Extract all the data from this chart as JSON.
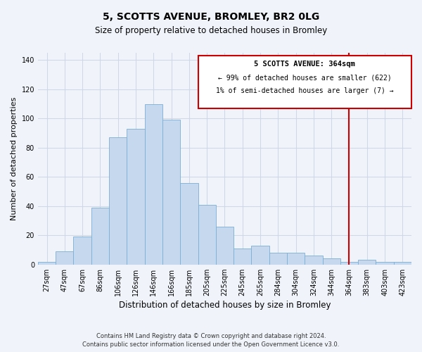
{
  "title": "5, SCOTTS AVENUE, BROMLEY, BR2 0LG",
  "subtitle": "Size of property relative to detached houses in Bromley",
  "xlabel": "Distribution of detached houses by size in Bromley",
  "ylabel": "Number of detached properties",
  "bar_color": "#c5d8ed",
  "bar_edge_color": "#7baed4",
  "categories": [
    "27sqm",
    "47sqm",
    "67sqm",
    "86sqm",
    "106sqm",
    "126sqm",
    "146sqm",
    "166sqm",
    "185sqm",
    "205sqm",
    "225sqm",
    "245sqm",
    "265sqm",
    "284sqm",
    "304sqm",
    "324sqm",
    "344sqm",
    "364sqm",
    "383sqm",
    "403sqm",
    "423sqm"
  ],
  "values": [
    2,
    9,
    19,
    39,
    87,
    93,
    110,
    99,
    56,
    41,
    26,
    11,
    13,
    8,
    8,
    6,
    4,
    2,
    3,
    2,
    2
  ],
  "ylim": [
    0,
    145
  ],
  "yticks": [
    0,
    20,
    40,
    60,
    80,
    100,
    120,
    140
  ],
  "vline_x_index": 17,
  "vline_color": "#cc0000",
  "box_text_line1": "5 SCOTTS AVENUE: 364sqm",
  "box_text_line2": "← 99% of detached houses are smaller (622)",
  "box_text_line3": "1% of semi-detached houses are larger (7) →",
  "box_color": "#cc0000",
  "box_fill": "#ffffff",
  "footnote1": "Contains HM Land Registry data © Crown copyright and database right 2024.",
  "footnote2": "Contains public sector information licensed under the Open Government Licence v3.0.",
  "background_color": "#f0f4fa",
  "grid_color": "#d0d8e8"
}
